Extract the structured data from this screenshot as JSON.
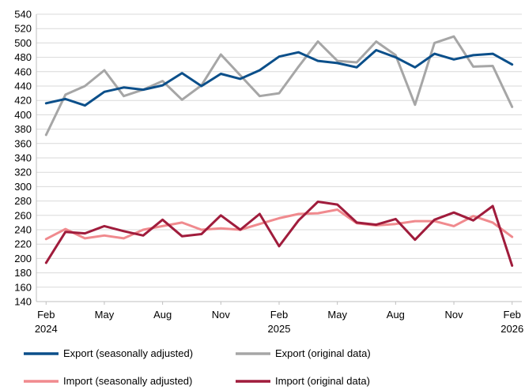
{
  "chart_data": {
    "type": "line",
    "title": "",
    "xlabel": "",
    "ylabel": "",
    "ylim": [
      140,
      540
    ],
    "y_ticks": [
      140,
      160,
      180,
      200,
      220,
      240,
      260,
      280,
      300,
      320,
      340,
      360,
      380,
      400,
      420,
      440,
      460,
      480,
      500,
      520,
      540
    ],
    "grid": "horizontal",
    "legend_position": "bottom",
    "x": [
      "2024-02",
      "2024-03",
      "2024-04",
      "2024-05",
      "2024-06",
      "2024-07",
      "2024-08",
      "2024-09",
      "2024-10",
      "2024-11",
      "2024-12",
      "2025-01",
      "2025-02",
      "2025-03",
      "2025-04",
      "2025-05",
      "2025-06",
      "2025-07",
      "2025-08",
      "2025-09",
      "2025-10",
      "2025-11",
      "2025-12",
      "2026-01",
      "2026-02"
    ],
    "x_tick_labels": [
      {
        "x": "2024-02",
        "lines": [
          "Feb",
          "2024"
        ]
      },
      {
        "x": "2024-05",
        "lines": [
          "May"
        ]
      },
      {
        "x": "2024-08",
        "lines": [
          "Aug"
        ]
      },
      {
        "x": "2024-11",
        "lines": [
          "Nov"
        ]
      },
      {
        "x": "2025-02",
        "lines": [
          "Feb",
          "2025"
        ]
      },
      {
        "x": "2025-05",
        "lines": [
          "May"
        ]
      },
      {
        "x": "2025-08",
        "lines": [
          "Aug"
        ]
      },
      {
        "x": "2025-11",
        "lines": [
          "Nov"
        ]
      },
      {
        "x": "2026-02",
        "lines": [
          "Feb",
          "2026"
        ]
      }
    ],
    "series": [
      {
        "name": "Export (seasonally adjusted)",
        "color": "#0b4f8a",
        "values": [
          416,
          422,
          413,
          432,
          438,
          435,
          441,
          458,
          440,
          457,
          450,
          462,
          481,
          487,
          475,
          472,
          466,
          490,
          480,
          466,
          485,
          477,
          483,
          485,
          470
        ]
      },
      {
        "name": "Export (original data)",
        "color": "#a6a6a6",
        "values": [
          372,
          428,
          440,
          462,
          426,
          435,
          447,
          421,
          441,
          484,
          455,
          426,
          430,
          467,
          502,
          475,
          473,
          502,
          483,
          414,
          500,
          509,
          467,
          468,
          411
        ]
      },
      {
        "name": "Import (seasonally adjusted)",
        "color": "#f08a8e",
        "values": [
          227,
          241,
          228,
          232,
          228,
          240,
          245,
          250,
          240,
          242,
          240,
          248,
          256,
          262,
          263,
          268,
          249,
          246,
          248,
          252,
          252,
          245,
          259,
          250,
          230
        ]
      },
      {
        "name": "Import (original data)",
        "color": "#a01c3c",
        "values": [
          194,
          237,
          235,
          245,
          238,
          232,
          254,
          231,
          234,
          260,
          240,
          262,
          217,
          253,
          279,
          275,
          250,
          247,
          255,
          226,
          254,
          264,
          253,
          273,
          190
        ]
      }
    ]
  }
}
